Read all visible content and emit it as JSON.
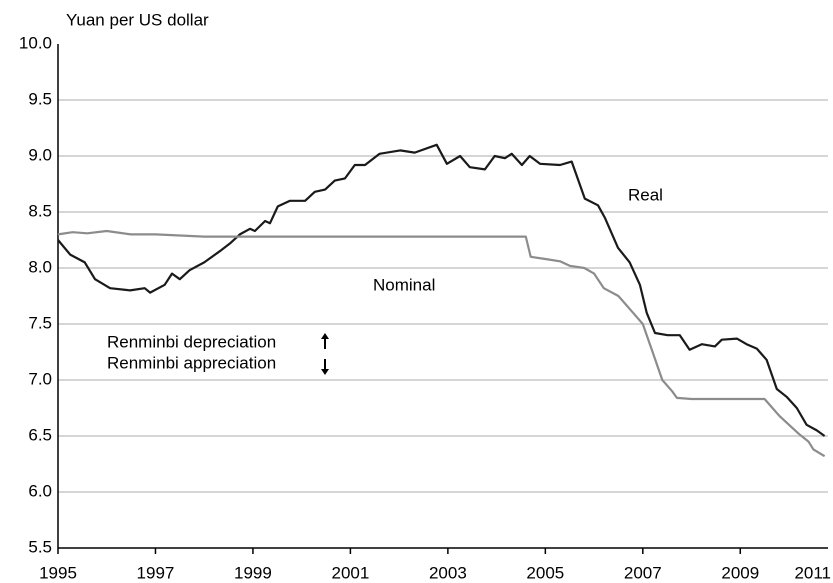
{
  "chart_data": {
    "type": "line",
    "y_axis_label": "Yuan per US dollar",
    "annotations": [
      "Renminbi depreciation",
      "Renminbi appreciation"
    ],
    "xlim": [
      1995,
      2010.8
    ],
    "xticks": [
      1995,
      1997,
      1999,
      2001,
      2003,
      2005,
      2007,
      2009,
      2011
    ],
    "ylim": [
      5.5,
      10
    ],
    "yticks": [
      {
        "value": 5.5,
        "label": "5.5"
      },
      {
        "value": 6,
        "label": "6.0"
      },
      6.5,
      {
        "value": 7,
        "label": "7.0"
      },
      7.5,
      {
        "value": 8,
        "label": "8.0"
      },
      8.5,
      {
        "value": 9,
        "label": "9.0"
      },
      9.5,
      {
        "value": 10,
        "label": "10.0"
      }
    ],
    "grid": true,
    "series": [
      {
        "name": "Real",
        "color": "#1a1a1a",
        "x": [
          1995.0,
          1995.25,
          1995.55,
          1995.76,
          1996.07,
          1996.48,
          1996.78,
          1996.89,
          1997.19,
          1997.34,
          1997.5,
          1997.7,
          1998.0,
          1998.32,
          1998.53,
          1998.73,
          1998.94,
          1999.04,
          1999.25,
          1999.35,
          1999.51,
          1999.76,
          2000.07,
          2000.27,
          2000.48,
          2000.68,
          2000.89,
          2001.09,
          2001.3,
          2001.6,
          2002.02,
          2002.32,
          2002.77,
          2002.98,
          2003.25,
          2003.45,
          2003.76,
          2003.96,
          2004.17,
          2004.31,
          2004.52,
          2004.68,
          2004.89,
          2005.3,
          2005.54,
          2005.81,
          2006.08,
          2006.22,
          2006.49,
          2006.73,
          2006.94,
          2007.08,
          2007.25,
          2007.51,
          2007.76,
          2007.96,
          2008.21,
          2008.48,
          2008.62,
          2008.93,
          2009.13,
          2009.34,
          2009.54,
          2009.75,
          2009.95,
          2010.16,
          2010.36,
          2010.57,
          2010.73
        ],
        "values": [
          8.25,
          8.12,
          8.05,
          7.9,
          7.82,
          7.8,
          7.82,
          7.78,
          7.85,
          7.95,
          7.9,
          7.98,
          8.05,
          8.15,
          8.22,
          8.3,
          8.35,
          8.33,
          8.42,
          8.4,
          8.55,
          8.6,
          8.6,
          8.68,
          8.7,
          8.78,
          8.8,
          8.92,
          8.92,
          9.02,
          9.05,
          9.03,
          9.1,
          8.93,
          9.0,
          8.9,
          8.88,
          9.0,
          8.98,
          9.02,
          8.92,
          9.0,
          8.93,
          8.92,
          8.95,
          8.62,
          8.56,
          8.45,
          8.18,
          8.05,
          7.85,
          7.6,
          7.42,
          7.4,
          7.4,
          7.27,
          7.32,
          7.3,
          7.36,
          7.37,
          7.32,
          7.28,
          7.18,
          6.92,
          6.85,
          6.75,
          6.6,
          6.55,
          6.5
        ]
      },
      {
        "name": "Nominal",
        "color": "#8c8c8c",
        "x": [
          1995.0,
          1995.3,
          1995.6,
          1996.0,
          1996.5,
          1997.0,
          1997.5,
          1998.0,
          2004.6,
          2004.7,
          2005.0,
          2005.3,
          2005.5,
          2005.8,
          2006.0,
          2006.2,
          2006.5,
          2006.8,
          2007.0,
          2007.2,
          2007.4,
          2007.6,
          2007.7,
          2008.0,
          2008.5,
          2009.0,
          2009.5,
          2009.6,
          2009.8,
          2010.0,
          2010.2,
          2010.4,
          2010.5,
          2010.73
        ],
        "values": [
          8.3,
          8.32,
          8.31,
          8.33,
          8.3,
          8.3,
          8.29,
          8.28,
          8.28,
          8.1,
          8.08,
          8.06,
          8.02,
          8.0,
          7.95,
          7.82,
          7.75,
          7.6,
          7.5,
          7.25,
          7.0,
          6.9,
          6.84,
          6.83,
          6.83,
          6.83,
          6.83,
          6.78,
          6.68,
          6.6,
          6.52,
          6.45,
          6.38,
          6.32
        ]
      }
    ]
  }
}
